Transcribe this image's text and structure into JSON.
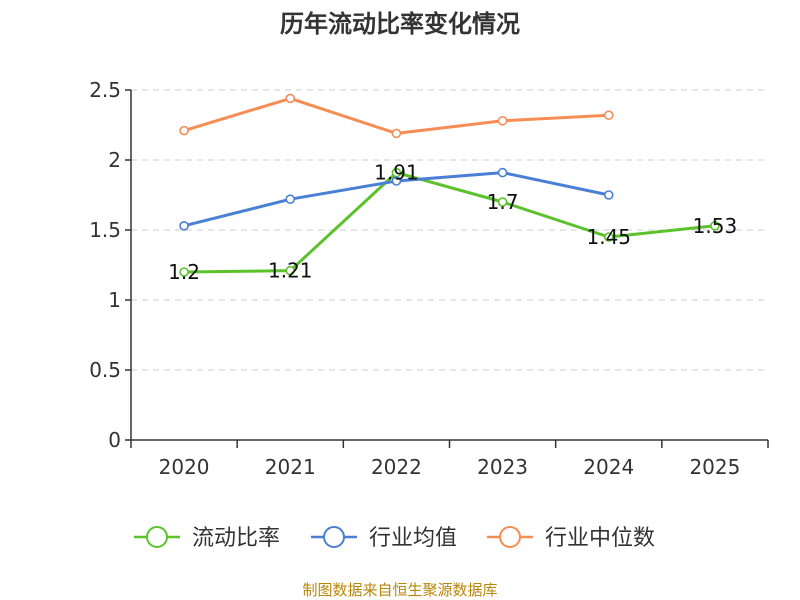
{
  "chart_data": {
    "type": "line",
    "title": "历年流动比率变化情况",
    "categories": [
      "2020",
      "2021",
      "2022",
      "2023",
      "2024",
      "2025"
    ],
    "ylim": [
      0,
      2.5
    ],
    "yticks": [
      "0",
      "0.5",
      "1",
      "1.5",
      "2",
      "2.5"
    ],
    "grid": true,
    "legend_position": "bottom",
    "series": [
      {
        "name": "流动比率",
        "color": "#5cc22b",
        "values": [
          1.2,
          1.21,
          1.91,
          1.7,
          1.45,
          1.53
        ],
        "labels": [
          "1.2",
          "1.21",
          "1.91",
          "1.7",
          "1.45",
          "1.53"
        ],
        "show_labels": true
      },
      {
        "name": "行业均值",
        "color": "#4a7fd6",
        "values": [
          1.53,
          1.72,
          1.85,
          1.91,
          1.75,
          null
        ],
        "show_labels": false
      },
      {
        "name": "行业中位数",
        "color": "#f78c55",
        "values": [
          2.21,
          2.44,
          2.19,
          2.28,
          2.32,
          null
        ],
        "show_labels": false
      }
    ]
  },
  "source_text": "制图数据来自恒生聚源数据库"
}
